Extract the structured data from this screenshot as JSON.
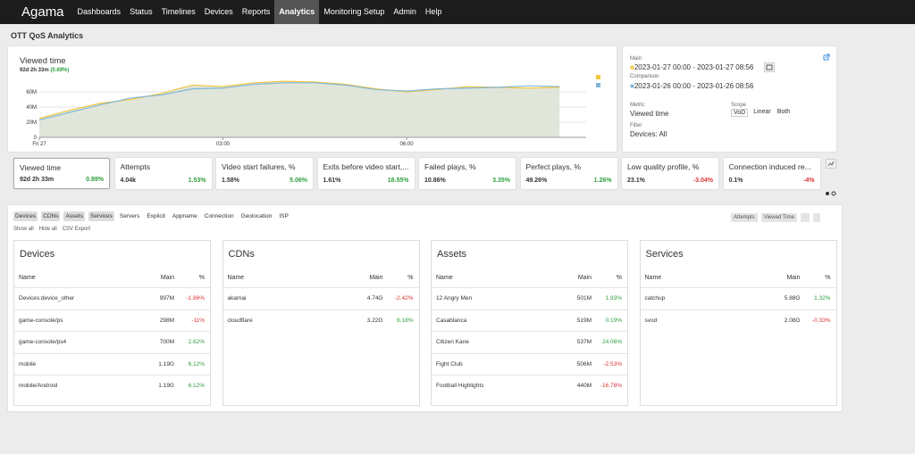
{
  "nav": {
    "logo": "Agama",
    "items": [
      "Dashboards",
      "Status",
      "Timelines",
      "Devices",
      "Reports",
      "Analytics",
      "Monitoring Setup",
      "Admin",
      "Help"
    ],
    "active": 5
  },
  "page_title": "OTT QoS Analytics",
  "chart": {
    "title": "Viewed time",
    "total": "92d 2h 33m",
    "change": "(0.89%)",
    "x": [
      "00:00",
      "00:30",
      "01:00",
      "01:30",
      "02:00",
      "02:30",
      "03:00",
      "03:30",
      "04:00",
      "04:30",
      "05:00",
      "05:30",
      "06:00",
      "06:30",
      "07:00",
      "07:30",
      "08:00",
      "08:30"
    ],
    "xlim": [
      "00:00",
      "08:56"
    ],
    "xticks": [
      {
        "value": "00:00",
        "label": "Fri 27"
      },
      "03:00",
      "06:00"
    ],
    "ylim": [
      0,
      80000000
    ],
    "yticks": [
      0,
      {
        "value": 20000000,
        "label": "20M"
      },
      {
        "value": 40000000,
        "label": "40M"
      },
      {
        "value": 60000000,
        "label": "60M"
      }
    ],
    "series": [
      {
        "name": "Main",
        "color": "#f5c842",
        "values": [
          25000000,
          36000000,
          45000000,
          50000000,
          58000000,
          69000000,
          67000000,
          72000000,
          74000000,
          73000000,
          70000000,
          64000000,
          60000000,
          63000000,
          67000000,
          66000000,
          65000000,
          66000000
        ]
      },
      {
        "name": "Comparison",
        "color": "#7fb8d8",
        "values": [
          23000000,
          33000000,
          43000000,
          52000000,
          56000000,
          64000000,
          65000000,
          70000000,
          72000000,
          72000000,
          69000000,
          63000000,
          61000000,
          64000000,
          65000000,
          66000000,
          68000000,
          67000000
        ]
      }
    ]
  },
  "side": {
    "main_range": "2023-01-27 00:00 - 2023-01-27 08:56",
    "comparison_range": "2023-01-26 00:00 - 2023-01-26 08:56",
    "metric_label": "Metric",
    "metric": "Viewed time",
    "scope_label": "Scope",
    "scopes": [
      "VoD",
      "Linear",
      "Both"
    ],
    "filter_label": "Filter",
    "filter": "Devices: All"
  },
  "kpis": [
    {
      "name": "Viewed time",
      "value": "92d 2h 33m",
      "change": "0.89%"
    },
    {
      "name": "Attempts",
      "value": "4.04k",
      "change": "1.53%"
    },
    {
      "name": "Video start failures, %",
      "value": "1.58%",
      "change": "5.06%"
    },
    {
      "name": "Exits before video start,...",
      "value": "1.61%",
      "change": "18.55%"
    },
    {
      "name": "Failed plays, %",
      "value": "10.86%",
      "change": "3.35%"
    },
    {
      "name": "Perfect plays, %",
      "value": "49.26%",
      "change": "1.26%"
    },
    {
      "name": "Low quality profile, %",
      "value": "23.1%",
      "change": "-3.04%"
    },
    {
      "name": "Connection induced re...",
      "value": "0.1%",
      "change": "-4%"
    }
  ],
  "tabs": [
    "Devices",
    "CDNs",
    "Assets",
    "Services",
    "Servers",
    "Explicit",
    "Appname",
    "Connection",
    "Geolocation",
    "ISP"
  ],
  "links": [
    "Show all",
    "Hide all",
    "CSV Export"
  ],
  "sort_buttons": [
    "Attempts",
    "Viewed Time"
  ],
  "tables": [
    {
      "title": "Devices",
      "columns": [
        "Name",
        "Main",
        "%"
      ],
      "rows": [
        [
          "Devices:device_other",
          "997M",
          "-1.86%"
        ],
        [
          "game-console/ps",
          "298M",
          "-11%"
        ],
        [
          "game-console/ps4",
          "700M",
          "2.62%"
        ],
        [
          "mobile",
          "1.19G",
          "6.12%"
        ],
        [
          "mobile/Android",
          "1.19G",
          "6.12%"
        ]
      ]
    },
    {
      "title": "CDNs",
      "columns": [
        "Name",
        "Main",
        "%"
      ],
      "rows": [
        [
          "akamai",
          "4.74G",
          "-2.42%"
        ],
        [
          "cloudflare",
          "3.22G",
          "6.18%"
        ]
      ]
    },
    {
      "title": "Assets",
      "columns": [
        "Name",
        "Main",
        "%"
      ],
      "rows": [
        [
          "12 Angry Men",
          "501M",
          "1.93%"
        ],
        [
          "Casablanca",
          "519M",
          "0.19%"
        ],
        [
          "Citizen Kane",
          "537M",
          "24.06%"
        ],
        [
          "Fight Club",
          "506M",
          "-2.53%"
        ],
        [
          "Football Highlights",
          "440M",
          "-16.78%"
        ]
      ]
    },
    {
      "title": "Services",
      "columns": [
        "Name",
        "Main",
        "%"
      ],
      "rows": [
        [
          "catchup",
          "5.88G",
          "1.32%"
        ],
        [
          "svod",
          "2.08G",
          "-0.33%"
        ]
      ]
    }
  ]
}
